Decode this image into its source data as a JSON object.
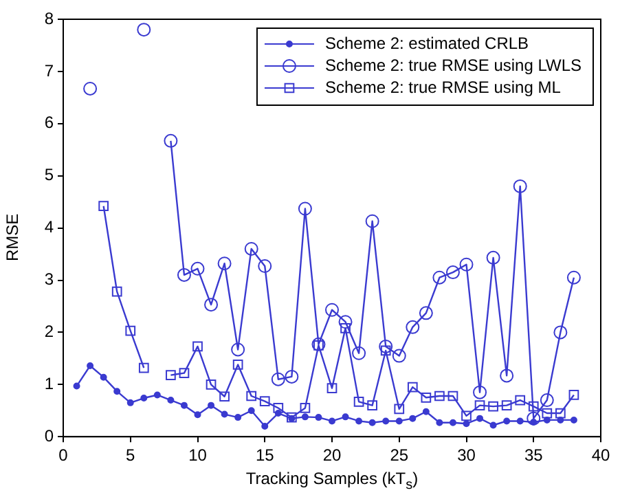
{
  "chart_data": {
    "type": "line",
    "xlabel": "Tracking Samples (kT$_{s}$)",
    "ylabel": "RMSE",
    "x": [
      1,
      2,
      3,
      4,
      5,
      6,
      7,
      8,
      9,
      10,
      11,
      12,
      13,
      14,
      15,
      16,
      17,
      18,
      19,
      20,
      21,
      22,
      23,
      24,
      25,
      26,
      27,
      28,
      29,
      30,
      31,
      32,
      33,
      34,
      35,
      36,
      37,
      38
    ],
    "xlim": [
      0,
      40
    ],
    "xticks": [
      0,
      5,
      10,
      15,
      20,
      25,
      30,
      35,
      40
    ],
    "ylim": [
      0,
      8
    ],
    "yticks": [
      0,
      1,
      2,
      3,
      4,
      5,
      6,
      7,
      8
    ],
    "grid": false,
    "legend": "top right",
    "line_style": "solid",
    "series": [
      {
        "name": "Scheme 2: estimated CRLB",
        "color": "#3a3ad0",
        "marker": "circle",
        "values": [
          0.97,
          1.36,
          1.14,
          0.87,
          0.65,
          0.74,
          0.8,
          0.7,
          0.6,
          0.42,
          0.6,
          0.43,
          0.37,
          0.5,
          0.2,
          0.45,
          0.35,
          0.38,
          0.37,
          0.3,
          0.38,
          0.3,
          0.27,
          0.3,
          0.3,
          0.35,
          0.48,
          0.27,
          0.27,
          0.25,
          0.35,
          0.22,
          0.3,
          0.3,
          0.28,
          0.32,
          0.32,
          0.32
        ]
      },
      {
        "name": "Scheme 2: true RMSE using LWLS",
        "color": "#3a3ad0",
        "marker": "circle",
        "values": [
          null,
          6.67,
          null,
          null,
          null,
          7.8,
          null,
          5.67,
          3.1,
          3.22,
          2.53,
          3.32,
          1.67,
          3.6,
          3.27,
          1.1,
          1.15,
          4.37,
          1.77,
          2.43,
          2.2,
          1.6,
          4.13,
          1.73,
          1.55,
          2.1,
          2.37,
          3.05,
          3.15,
          3.3,
          0.85,
          3.43,
          1.17,
          4.8,
          0.35,
          0.7,
          2.0,
          3.05
        ]
      },
      {
        "name": "Scheme 2: true RMSE using ML",
        "color": "#3a3ad0",
        "marker": "square",
        "values": [
          null,
          null,
          4.42,
          2.78,
          2.03,
          1.32,
          null,
          1.18,
          1.22,
          1.73,
          1.0,
          0.77,
          1.38,
          0.78,
          0.68,
          0.55,
          0.37,
          0.55,
          1.75,
          0.93,
          2.08,
          0.67,
          0.6,
          1.65,
          0.53,
          0.95,
          0.75,
          0.78,
          0.78,
          0.4,
          0.6,
          0.58,
          0.6,
          0.7,
          0.58,
          0.45,
          0.45,
          0.8
        ]
      }
    ]
  }
}
